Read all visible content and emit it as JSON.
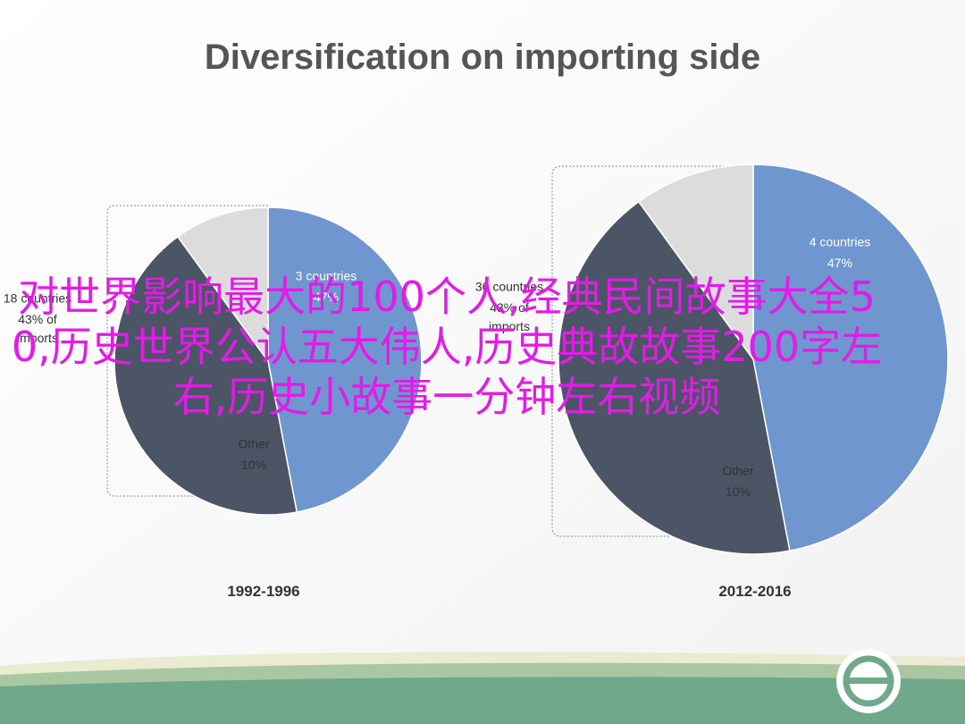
{
  "title": "Diversification on importing side",
  "overlay": "对世界影响最大的100个人,经典民间故事大全50,历史世界公认五大伟人,历史典故故事200字左右,历史小故事一分钟左右视频",
  "chart_data": [
    {
      "type": "pie",
      "title": "1992-1996",
      "categories": [
        "3 countries",
        "18 countries",
        "Other"
      ],
      "values": [
        47,
        43,
        10
      ],
      "value_labels": [
        "47%",
        "43% of imports",
        "10%"
      ],
      "colors": [
        "#7096cf",
        "#4b5566",
        "#dcdcdc"
      ]
    },
    {
      "type": "pie",
      "title": "2012-2016",
      "categories": [
        "4 countries",
        "36 countries",
        "Other"
      ],
      "values": [
        47,
        43,
        10
      ],
      "value_labels": [
        "47%",
        "43% of imports",
        "10%"
      ],
      "colors": [
        "#7096cf",
        "#4b5566",
        "#dcdcdc"
      ]
    }
  ]
}
